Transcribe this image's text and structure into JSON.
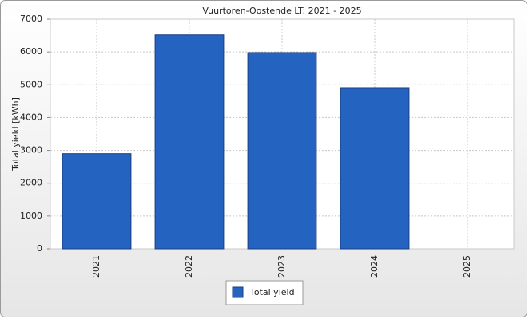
{
  "chart_data": {
    "type": "bar",
    "title": "Vuurtoren-Oostende LT: 2021 - 2025",
    "y_label": "Total yield [kWh]",
    "categories": [
      "2021",
      "2022",
      "2023",
      "2024",
      "2025"
    ],
    "series": [
      {
        "name": "Total yield",
        "color": "#2563c0",
        "values": [
          2900,
          6520,
          5980,
          4910,
          null
        ]
      }
    ],
    "ylim": [
      0,
      7000
    ],
    "yticks": [
      0,
      1000,
      2000,
      3000,
      4000,
      5000,
      6000,
      7000
    ],
    "grid": true
  }
}
